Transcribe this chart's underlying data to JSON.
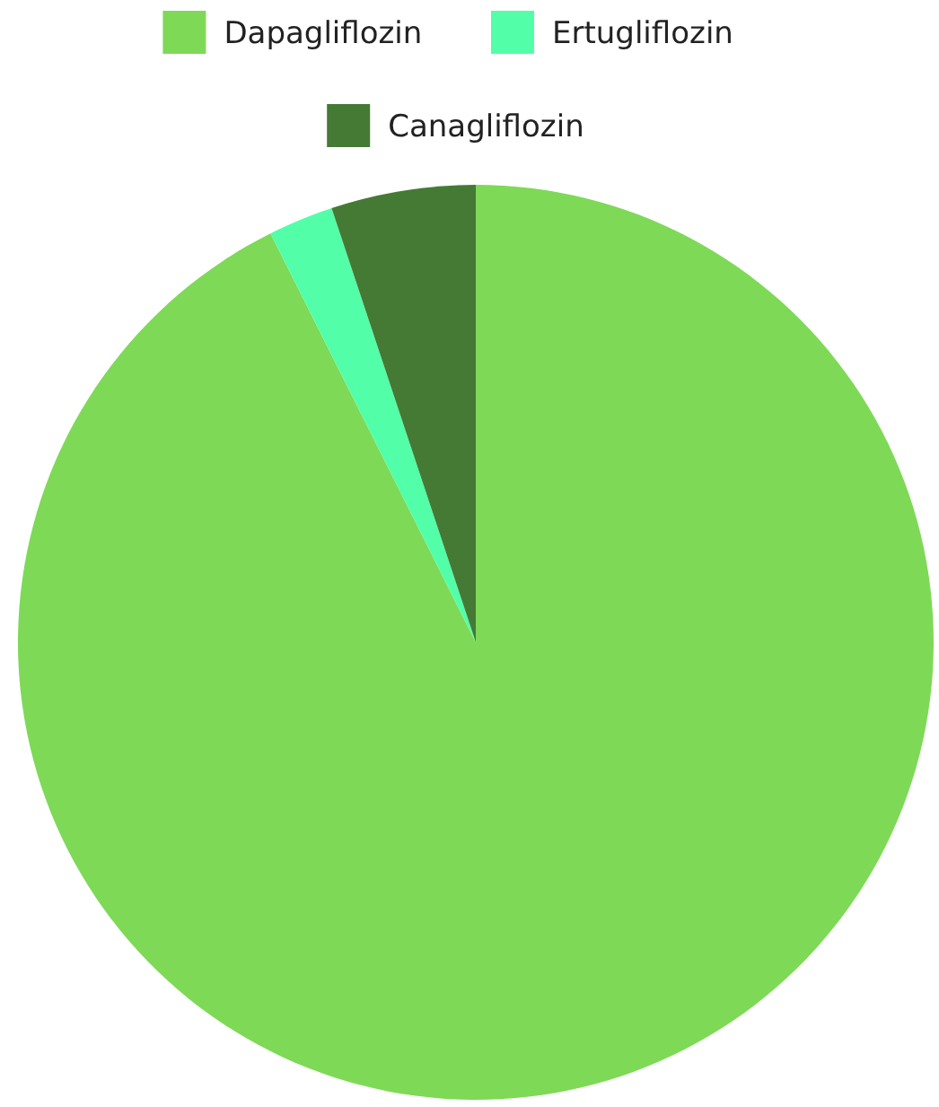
{
  "chart_data": {
    "type": "pie",
    "categories": [
      "Dapagliflozin",
      "Ertugliflozin",
      "Canagliflozin"
    ],
    "values": [
      92.6,
      2.3,
      5.1
    ],
    "colors": [
      "#7ed957",
      "#52ffa8",
      "#457a35"
    ],
    "legend": "top"
  }
}
